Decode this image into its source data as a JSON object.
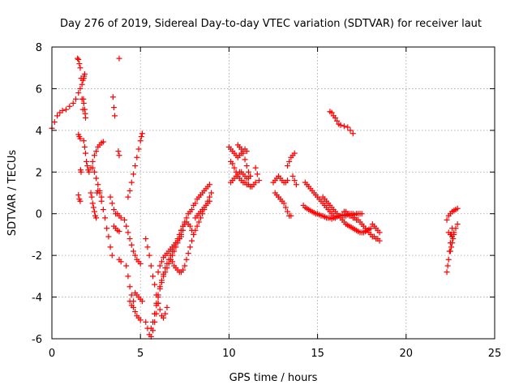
{
  "chart_data": {
    "type": "scatter",
    "title": "Day 276 of 2019, Sidereal Day-to-day VTEC variation (SDTVAR) for receiver laut",
    "xlabel": "GPS time / hours",
    "ylabel": "SDTVAR / TECUs",
    "xlim": [
      0,
      25
    ],
    "ylim": [
      -6,
      8
    ],
    "xticks": [
      0,
      5,
      10,
      15,
      20,
      25
    ],
    "yticks": [
      -6,
      -4,
      -2,
      0,
      2,
      4,
      6,
      8
    ],
    "xtick_labels": [
      "0",
      "5",
      "10",
      "15",
      "20",
      "25"
    ],
    "ytick_labels": [
      "-6",
      "-4",
      "-2",
      "0",
      "2",
      "4",
      "6",
      "8"
    ],
    "grid": true,
    "marker": "plus",
    "color": "#ff0000",
    "segments": [
      {
        "x": [
          0.0,
          0.15,
          0.3,
          0.45,
          0.6,
          0.8,
          1.0,
          1.2,
          1.35,
          1.5,
          1.6,
          1.7,
          1.75,
          1.8,
          1.82,
          1.85
        ],
        "y": [
          4.1,
          4.4,
          4.7,
          4.85,
          4.95,
          5.0,
          5.15,
          5.3,
          5.5,
          5.8,
          6.0,
          6.2,
          6.4,
          6.5,
          6.6,
          6.7
        ]
      },
      {
        "x": [
          1.45,
          1.5,
          1.55,
          1.6,
          1.65,
          1.7,
          1.75
        ],
        "y": [
          7.45,
          7.4,
          7.2,
          7.0,
          6.5,
          5.5,
          5.0
        ]
      },
      {
        "x": [
          1.78,
          1.8,
          1.85,
          1.88,
          1.9
        ],
        "y": [
          5.5,
          5.3,
          5.0,
          4.8,
          4.6
        ]
      },
      {
        "x": [
          3.45,
          3.5,
          3.55
        ],
        "y": [
          5.6,
          5.1,
          4.7
        ]
      },
      {
        "x": [
          3.8
        ],
        "y": [
          7.45
        ]
      },
      {
        "x": [
          15.7,
          15.8,
          15.9,
          16.0,
          16.1,
          16.2,
          16.3,
          16.5,
          16.7,
          16.85,
          17.0
        ],
        "y": [
          4.9,
          4.85,
          4.7,
          4.6,
          4.45,
          4.3,
          4.25,
          4.2,
          4.15,
          4.0,
          3.85
        ]
      },
      {
        "x": [
          1.5,
          1.55,
          1.6,
          1.62,
          1.65
        ],
        "y": [
          3.8,
          3.7,
          3.6,
          2.1,
          2.0
        ]
      },
      {
        "x": [
          1.5,
          1.55,
          1.6
        ],
        "y": [
          0.9,
          0.7,
          0.6
        ]
      },
      {
        "x": [
          1.8,
          1.85,
          1.9,
          1.95,
          2.0,
          2.05,
          2.1
        ],
        "y": [
          3.5,
          3.2,
          2.9,
          2.5,
          2.3,
          2.1,
          2.0
        ]
      },
      {
        "x": [
          2.2,
          2.3,
          2.4,
          2.5,
          2.6,
          2.7,
          2.8,
          2.9
        ],
        "y": [
          2.2,
          2.5,
          2.8,
          3.0,
          3.2,
          3.3,
          3.4,
          3.45
        ]
      },
      {
        "x": [
          2.2,
          2.25,
          2.3,
          2.35,
          2.4,
          2.45,
          2.5,
          2.55,
          2.6,
          2.7,
          2.8
        ],
        "y": [
          1.0,
          0.8,
          0.5,
          0.3,
          0.1,
          -0.1,
          -0.2,
          1.0,
          1.1,
          1.0,
          0.8
        ]
      },
      {
        "x": [
          2.3,
          2.4,
          2.5,
          2.6,
          2.7,
          2.8,
          2.9,
          3.0,
          3.1,
          3.2,
          3.3,
          3.4
        ],
        "y": [
          2.2,
          2.0,
          1.7,
          1.4,
          1.1,
          0.6,
          0.2,
          -0.2,
          -0.7,
          -1.1,
          -1.6,
          -2.0
        ]
      },
      {
        "x": [
          3.3,
          3.4,
          3.5,
          3.6,
          3.7,
          3.8,
          3.9
        ],
        "y": [
          0.8,
          0.5,
          0.2,
          0.0,
          0.0,
          -0.1,
          -0.2
        ]
      },
      {
        "x": [
          3.5,
          3.6,
          3.7,
          3.8
        ],
        "y": [
          -0.6,
          -0.7,
          -0.8,
          -0.85
        ]
      },
      {
        "x": [
          3.8,
          3.9
        ],
        "y": [
          -2.2,
          -2.3
        ]
      },
      {
        "x": [
          3.75,
          3.8
        ],
        "y": [
          3.0,
          2.8
        ]
      },
      {
        "x": [
          4.1,
          4.2,
          4.3,
          4.4,
          4.5,
          4.6,
          4.7,
          4.8,
          4.9,
          5.0
        ],
        "y": [
          -0.3,
          -0.6,
          -0.9,
          -1.2,
          -1.5,
          -1.8,
          -2.0,
          -2.2,
          -2.3,
          -2.4
        ]
      },
      {
        "x": [
          4.3,
          4.4,
          4.5,
          4.6,
          4.7,
          4.8,
          4.9,
          5.0,
          5.05,
          5.1
        ],
        "y": [
          0.8,
          1.1,
          1.5,
          1.9,
          2.3,
          2.7,
          3.1,
          3.5,
          3.7,
          3.85
        ]
      },
      {
        "x": [
          4.2,
          4.3,
          4.4,
          4.5,
          4.6
        ],
        "y": [
          -2.5,
          -3.0,
          -3.5,
          -3.9,
          -4.2
        ]
      },
      {
        "x": [
          4.4,
          4.5,
          4.6,
          4.7,
          4.8,
          4.9,
          5.0
        ],
        "y": [
          -4.2,
          -4.4,
          -4.5,
          -4.7,
          -4.9,
          -5.0,
          -5.1
        ]
      },
      {
        "x": [
          4.7,
          4.8,
          4.9,
          5.0,
          5.1
        ],
        "y": [
          -3.8,
          -3.9,
          -4.0,
          -4.1,
          -4.2
        ]
      },
      {
        "x": [
          5.3,
          5.4,
          5.5,
          5.6,
          5.7,
          5.8,
          5.9,
          6.0
        ],
        "y": [
          -5.2,
          -5.5,
          -5.8,
          -5.9,
          -5.6,
          -5.2,
          -4.8,
          -4.3
        ]
      },
      {
        "x": [
          5.3,
          5.4,
          5.5,
          5.6,
          5.7,
          5.8,
          5.9,
          6.0,
          6.1,
          6.2,
          6.3,
          6.4,
          6.5
        ],
        "y": [
          -1.2,
          -1.6,
          -2.0,
          -2.5,
          -3.0,
          -3.4,
          -3.9,
          -4.3,
          -4.6,
          -4.9,
          -5.0,
          -4.8,
          -4.5
        ]
      },
      {
        "x": [
          5.6,
          5.7,
          5.8,
          5.9,
          6.0,
          6.1,
          6.2,
          6.3,
          6.4,
          6.5,
          6.6,
          6.7,
          6.8,
          6.9,
          7.0,
          7.1,
          7.2,
          7.3,
          7.4
        ],
        "y": [
          -5.5,
          -5.2,
          -4.8,
          -4.4,
          -4.0,
          -3.6,
          -3.3,
          -3.0,
          -2.8,
          -2.6,
          -2.4,
          -2.2,
          -2.0,
          -1.8,
          -1.6,
          -1.4,
          -1.2,
          -1.0,
          -0.8
        ]
      },
      {
        "x": [
          5.8,
          5.9,
          6.0,
          6.1,
          6.2,
          6.3,
          6.4,
          6.5,
          6.6,
          6.7,
          6.8,
          6.9,
          7.0,
          7.1,
          7.2,
          7.3,
          7.4,
          7.5,
          7.6,
          7.7,
          7.8,
          7.9,
          8.0,
          8.1,
          8.2,
          8.3,
          8.4,
          8.5,
          8.6,
          8.7,
          8.8,
          8.9
        ],
        "y": [
          -4.8,
          -4.3,
          -3.9,
          -3.5,
          -3.2,
          -2.9,
          -2.6,
          -2.4,
          -2.2,
          -2.0,
          -1.8,
          -1.6,
          -1.4,
          -1.2,
          -1.0,
          -0.8,
          -0.6,
          -0.4,
          -0.2,
          0.0,
          0.1,
          0.2,
          0.4,
          0.5,
          0.7,
          0.8,
          0.9,
          1.0,
          1.1,
          1.2,
          1.3,
          1.4
        ]
      },
      {
        "x": [
          6.0,
          6.1,
          6.2,
          6.3,
          6.4,
          6.5,
          6.6,
          6.7,
          6.8,
          6.9,
          7.0,
          7.1,
          7.2,
          7.3
        ],
        "y": [
          -2.8,
          -2.5,
          -2.3,
          -2.1,
          -2.0,
          -1.9,
          -1.8,
          -1.7,
          -1.6,
          -1.5,
          -1.4,
          -1.3,
          -1.2,
          -1.1
        ]
      },
      {
        "x": [
          6.7,
          6.8,
          6.9,
          7.0,
          7.1,
          7.2,
          7.3,
          7.4,
          7.5,
          7.6,
          7.7,
          7.8,
          7.9,
          8.0
        ],
        "y": [
          -2.2,
          -2.3,
          -2.5,
          -2.6,
          -2.7,
          -2.8,
          -2.8,
          -2.7,
          -2.5,
          -2.2,
          -1.9,
          -1.6,
          -1.3,
          -1.0
        ]
      },
      {
        "x": [
          7.3,
          7.4,
          7.5,
          7.6,
          7.7,
          7.8,
          7.9
        ],
        "y": [
          -0.8,
          -0.6,
          -0.5,
          -0.4,
          -0.5,
          -0.6,
          -0.8
        ]
      },
      {
        "x": [
          8.0,
          8.1,
          8.2,
          8.3,
          8.4,
          8.5,
          8.6,
          8.7,
          8.8,
          8.9,
          9.0
        ],
        "y": [
          -1.0,
          -0.8,
          -0.6,
          -0.4,
          -0.2,
          0.0,
          0.2,
          0.4,
          0.6,
          0.8,
          1.0
        ]
      },
      {
        "x": [
          8.1,
          8.2,
          8.3,
          8.4,
          8.5,
          8.6,
          8.7,
          8.8,
          8.9
        ],
        "y": [
          -0.2,
          -0.1,
          0.0,
          0.1,
          0.2,
          0.3,
          0.4,
          0.5,
          0.6
        ]
      },
      {
        "x": [
          10.0,
          10.1,
          10.2,
          10.3,
          10.4,
          10.5,
          10.6,
          10.7,
          10.8,
          10.9,
          11.0
        ],
        "y": [
          3.2,
          3.1,
          3.0,
          2.9,
          2.8,
          2.7,
          2.8,
          2.9,
          3.0,
          3.1,
          3.0
        ]
      },
      {
        "x": [
          10.1,
          10.2,
          10.3,
          10.4,
          10.5,
          10.6,
          10.7,
          10.8,
          10.9,
          11.0,
          11.1,
          11.2,
          11.3,
          11.4,
          11.5
        ],
        "y": [
          2.5,
          2.4,
          2.2,
          2.0,
          1.8,
          1.7,
          1.6,
          1.5,
          1.5,
          1.4,
          1.4,
          1.3,
          1.3,
          1.4,
          1.5
        ]
      },
      {
        "x": [
          10.1,
          10.2,
          10.3,
          10.4,
          10.5,
          10.6,
          10.7,
          10.8,
          10.9,
          11.0,
          11.1,
          11.2
        ],
        "y": [
          1.5,
          1.6,
          1.7,
          1.8,
          1.9,
          2.0,
          2.0,
          1.9,
          1.8,
          1.7,
          1.7,
          1.8
        ]
      },
      {
        "x": [
          10.5,
          10.6,
          10.7,
          10.8,
          10.9,
          11.0,
          11.1,
          11.2
        ],
        "y": [
          3.3,
          3.2,
          3.1,
          2.9,
          2.6,
          2.3,
          2.0,
          1.8
        ]
      },
      {
        "x": [
          11.5,
          11.6,
          11.7
        ],
        "y": [
          2.2,
          1.9,
          1.6
        ]
      },
      {
        "x": [
          12.5,
          12.6,
          12.7,
          12.8,
          12.9,
          13.0,
          13.1,
          13.2,
          13.3
        ],
        "y": [
          1.5,
          1.6,
          1.7,
          1.8,
          1.7,
          1.6,
          1.5,
          1.5,
          1.6
        ]
      },
      {
        "x": [
          12.6,
          12.7,
          12.8,
          12.9,
          13.0,
          13.1,
          13.2,
          13.3,
          13.4,
          13.5
        ],
        "y": [
          1.0,
          0.9,
          0.8,
          0.7,
          0.6,
          0.5,
          0.3,
          0.1,
          -0.1,
          -0.1
        ]
      },
      {
        "x": [
          13.3,
          13.4,
          13.5,
          13.6,
          13.7
        ],
        "y": [
          2.3,
          2.5,
          2.7,
          2.8,
          2.9
        ]
      },
      {
        "x": [
          13.6,
          13.7,
          13.8
        ],
        "y": [
          1.8,
          1.6,
          1.4
        ]
      },
      {
        "x": [
          14.2,
          14.3,
          14.4,
          14.5,
          14.6,
          14.7,
          14.8,
          14.9,
          15.0,
          15.1,
          15.2,
          15.3,
          15.4,
          15.5,
          15.6,
          15.7,
          15.8,
          15.9,
          16.0,
          16.1,
          16.2,
          16.3,
          16.4,
          16.5,
          16.6,
          16.7,
          16.8,
          16.9,
          17.0,
          17.1,
          17.2,
          17.3,
          17.4,
          17.5
        ],
        "y": [
          0.4,
          0.3,
          0.25,
          0.2,
          0.15,
          0.1,
          0.05,
          0.0,
          0.0,
          -0.05,
          -0.1,
          -0.1,
          -0.15,
          -0.2,
          -0.2,
          -0.2,
          -0.25,
          -0.2,
          -0.2,
          -0.15,
          -0.1,
          -0.1,
          -0.05,
          -0.1,
          -0.1,
          -0.05,
          0.0,
          0.0,
          0.0,
          -0.05,
          0.0,
          0.0,
          0.0,
          0.0
        ]
      },
      {
        "x": [
          14.3,
          14.4,
          14.5,
          14.6,
          14.7,
          14.8,
          14.9,
          15.0,
          15.1,
          15.2,
          15.3,
          15.4,
          15.5,
          15.6,
          15.7,
          15.8,
          15.9,
          16.0
        ],
        "y": [
          1.5,
          1.4,
          1.3,
          1.2,
          1.1,
          1.0,
          0.9,
          0.8,
          0.7,
          0.6,
          0.5,
          0.4,
          0.3,
          0.2,
          0.1,
          0.0,
          -0.1,
          -0.2
        ]
      },
      {
        "x": [
          15.3,
          15.4,
          15.5,
          15.6,
          15.7,
          15.8,
          15.9,
          16.0,
          16.1,
          16.2,
          16.3,
          16.4,
          16.5,
          16.6,
          16.7,
          16.8,
          16.9,
          17.0,
          17.1,
          17.2,
          17.3,
          17.4,
          17.5,
          17.6,
          17.7,
          17.8,
          17.9,
          18.0
        ],
        "y": [
          0.8,
          0.7,
          0.6,
          0.5,
          0.4,
          0.3,
          0.2,
          0.1,
          0.0,
          -0.1,
          -0.2,
          -0.3,
          -0.4,
          -0.5,
          -0.55,
          -0.6,
          -0.65,
          -0.7,
          -0.75,
          -0.8,
          -0.85,
          -0.9,
          -0.9,
          -0.9,
          -0.85,
          -0.8,
          -0.75,
          -0.7
        ]
      },
      {
        "x": [
          16.5,
          16.6,
          16.7,
          16.8,
          16.9,
          17.0,
          17.1,
          17.2,
          17.3,
          17.4,
          17.5,
          17.6,
          17.7,
          17.8,
          17.9,
          18.0,
          18.1,
          18.2,
          18.3,
          18.4,
          18.5
        ],
        "y": [
          0.1,
          0.1,
          0.0,
          -0.1,
          -0.1,
          -0.2,
          -0.2,
          -0.3,
          -0.3,
          -0.4,
          -0.5,
          -0.6,
          -0.7,
          -0.8,
          -0.9,
          -1.0,
          -1.1,
          -1.1,
          -1.2,
          -1.2,
          -1.3
        ]
      },
      {
        "x": [
          18.1,
          18.2,
          18.3,
          18.4,
          18.5
        ],
        "y": [
          -0.5,
          -0.6,
          -0.7,
          -0.8,
          -0.9
        ]
      },
      {
        "x": [
          22.3,
          22.35,
          22.4,
          22.45,
          22.5,
          22.55,
          22.6
        ],
        "y": [
          -2.8,
          -2.5,
          -2.2,
          -1.8,
          -1.4,
          -1.0,
          -0.7
        ]
      },
      {
        "x": [
          22.3,
          22.4,
          22.5,
          22.6,
          22.7,
          22.8,
          22.9
        ],
        "y": [
          -0.3,
          -0.1,
          0.0,
          0.1,
          0.15,
          0.2,
          0.25
        ]
      },
      {
        "x": [
          22.4,
          22.5,
          22.6,
          22.7,
          22.8,
          22.9
        ],
        "y": [
          -0.9,
          -1.0,
          -1.1,
          -0.9,
          -0.7,
          -0.5
        ]
      },
      {
        "x": [
          22.5,
          22.55,
          22.6,
          22.65,
          22.7
        ],
        "y": [
          -1.8,
          -1.6,
          -1.4,
          -1.2,
          -1.0
        ]
      }
    ]
  }
}
